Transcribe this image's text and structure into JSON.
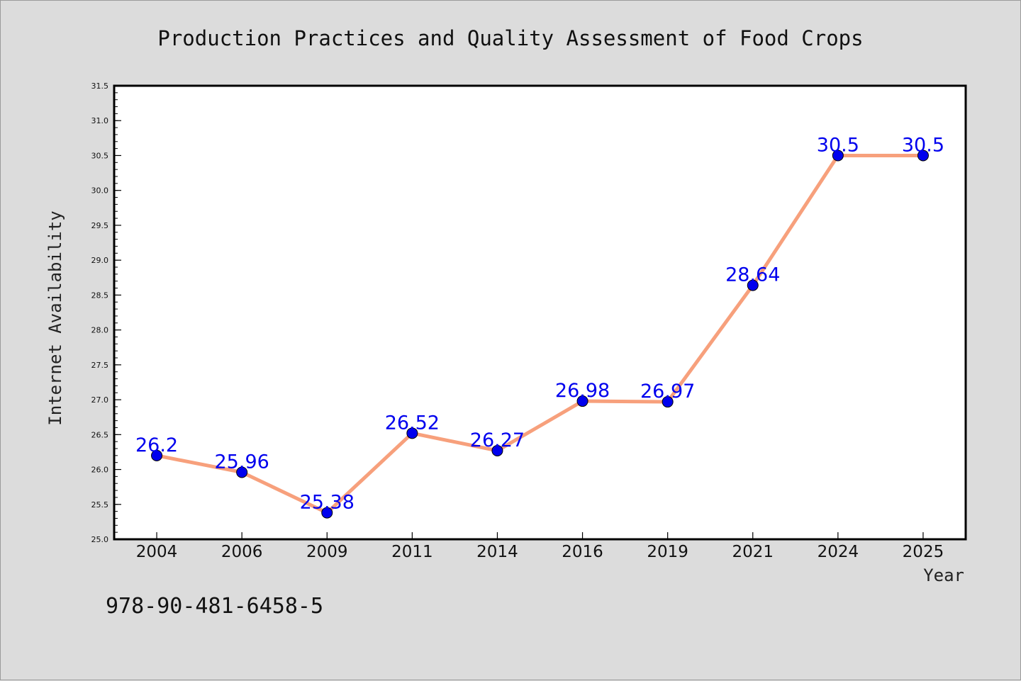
{
  "chart_data": {
    "type": "line",
    "title": "Production Practices and Quality Assessment of Food Crops",
    "xlabel": "Year",
    "ylabel": "Internet Availability",
    "categories": [
      "2004",
      "2006",
      "2009",
      "2011",
      "2014",
      "2016",
      "2019",
      "2021",
      "2024",
      "2025"
    ],
    "series": [
      {
        "values": [
          26.2,
          25.96,
          25.38,
          26.52,
          26.27,
          26.98,
          26.97,
          28.64,
          30.5,
          30.5
        ]
      }
    ],
    "data_labels": [
      "26.2",
      "25.96",
      "25.38",
      "26.52",
      "26.27",
      "26.98",
      "26.97",
      "28.64",
      "30.5",
      "30.5"
    ],
    "ylim": [
      25.0,
      31.5
    ],
    "yticks": [
      "25.0",
      "25.5",
      "26.0",
      "26.5",
      "27.0",
      "27.5",
      "28.0",
      "28.5",
      "29.0",
      "29.5",
      "30.0",
      "30.5",
      "31.0",
      "31.5"
    ],
    "grid": false,
    "line_color": "#f7a07c",
    "marker_color": "#0000ee"
  },
  "footnote": "978-90-481-6458-5"
}
